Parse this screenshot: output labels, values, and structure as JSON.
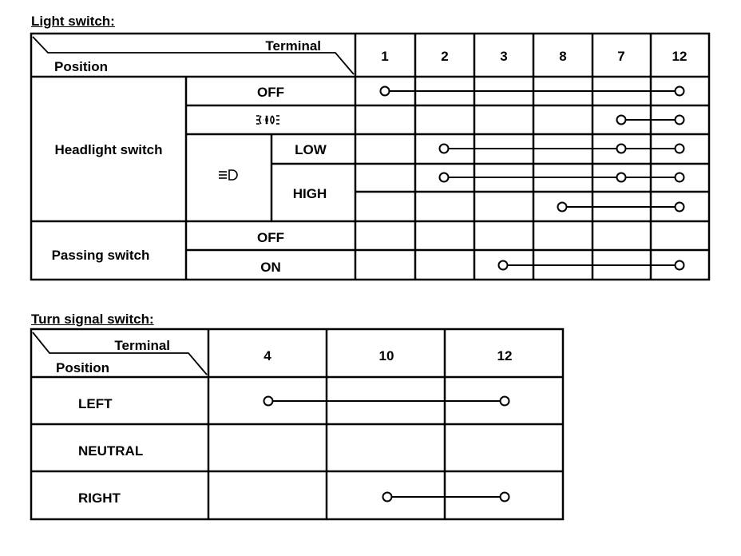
{
  "light_switch": {
    "title": "Light switch:",
    "header_terminal": "Terminal",
    "header_position": "Position",
    "terminals": [
      "1",
      "2",
      "3",
      "8",
      "7",
      "12"
    ],
    "groups": {
      "headlight": "Headlight switch",
      "passing": "Passing switch"
    },
    "labels": {
      "off": "OFF",
      "low": "LOW",
      "high": "HIGH",
      "p_off": "OFF",
      "p_on": "ON"
    },
    "icons": {
      "parking": "parking-light-icon",
      "headlight": "headlight-icon"
    },
    "rows": [
      {
        "name": "OFF",
        "connected": [
          "1",
          "12"
        ]
      },
      {
        "name": "parking",
        "connected": [
          "7",
          "12"
        ]
      },
      {
        "name": "LOW",
        "connected": [
          "2",
          "7",
          "12"
        ]
      },
      {
        "name": "HIGH-1",
        "connected": [
          "2",
          "7",
          "12"
        ]
      },
      {
        "name": "HIGH-2",
        "connected": [
          "8",
          "12"
        ]
      },
      {
        "name": "Passing OFF",
        "connected": []
      },
      {
        "name": "Passing ON",
        "connected": [
          "3",
          "12"
        ]
      }
    ]
  },
  "turn_signal_switch": {
    "title": "Turn signal switch:",
    "header_terminal": "Terminal",
    "header_position": "Position",
    "terminals": [
      "4",
      "10",
      "12"
    ],
    "rows": [
      {
        "name": "LEFT",
        "connected": [
          "4",
          "12"
        ]
      },
      {
        "name": "NEUTRAL",
        "connected": []
      },
      {
        "name": "RIGHT",
        "connected": [
          "10",
          "12"
        ]
      }
    ]
  }
}
